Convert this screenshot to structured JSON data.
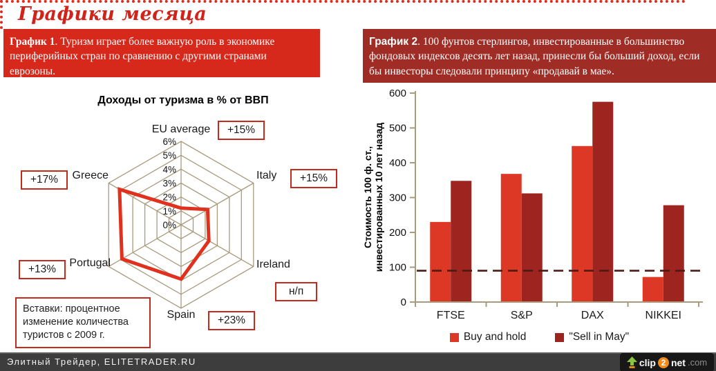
{
  "page": {
    "title": "Графики месяца",
    "footer_text": "Элитный Трейдер, ELITETRADER.RU",
    "logo": {
      "arrow": "up-arrow",
      "clip": "clip",
      "two": "2",
      "net": "net",
      "com": ".com"
    }
  },
  "captions": {
    "c1": {
      "label": "График 1",
      "text": ". Туризм играет более важную роль в экономике периферийных стран по сравнению с другими странами еврозоны."
    },
    "c2": {
      "label": "График 2",
      "text": ". 100 фунтов стерлингов, инвестированные в большинство фондовых индексов десять лет назад, принесли бы больший доход, если бы инвесторы следовали принципу «продавай в мае»."
    }
  },
  "colors": {
    "accent_red": "#d7281c",
    "dark_red": "#9e241f",
    "radar_line": "#e0301e",
    "grid_tan": "#a79b7c",
    "callout_border": "#c5291d",
    "dashed_line": "#4d1a12",
    "footer_bg": "#3d3d3d"
  },
  "chart_data": [
    {
      "type": "radar",
      "title": "Доходы от туризма в % от ВВП",
      "categories": [
        "EU average",
        "Italy",
        "Ireland",
        "Spain",
        "Portugal",
        "Greece"
      ],
      "values": [
        1.2,
        2.2,
        2.3,
        3.9,
        4.9,
        5.1
      ],
      "unit": "% of GDP",
      "scale": {
        "min": 0,
        "max": 6,
        "step": 1,
        "tick_labels": [
          "0%",
          "1%",
          "2%",
          "3%",
          "4%",
          "5%",
          "6%"
        ]
      },
      "grid": true,
      "line_color": "#e0301e",
      "annotations": {
        "eu_average": "+15%",
        "italy": "+15%",
        "ireland": "н/п",
        "spain": "+23%",
        "portugal": "+13%",
        "greece": "+17%"
      },
      "note": "Вставки: процентное изменение количества туристов с 2009 г."
    },
    {
      "type": "bar",
      "categories": [
        "FTSE",
        "S&P",
        "DAX",
        "NIKKEI"
      ],
      "series": [
        {
          "name": "Buy and hold",
          "color": "#dd3726",
          "values": [
            230,
            368,
            448,
            72
          ]
        },
        {
          "name": "\"Sell in May\"",
          "color": "#9e241f",
          "values": [
            348,
            312,
            575,
            278
          ]
        }
      ],
      "ylabel_line1": "Стоимость 100 ф. ст.,",
      "ylabel_line2": "инвестированных 10 лет назад",
      "ylim": [
        0,
        600
      ],
      "ytick_step": 100,
      "ytick_labels": [
        "0",
        "100",
        "200",
        "300",
        "400",
        "500",
        "600"
      ],
      "reference_line": 90,
      "legend_position": "bottom",
      "grid": false
    }
  ]
}
